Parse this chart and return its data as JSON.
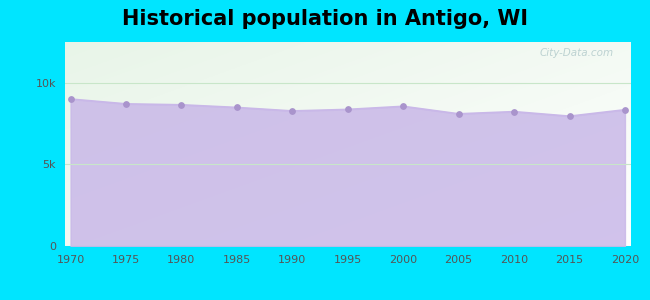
{
  "title": "Historical population in Antigo, WI",
  "title_fontsize": 15,
  "title_fontweight": "bold",
  "years": [
    1970,
    1975,
    1980,
    1985,
    1990,
    1995,
    2000,
    2005,
    2010,
    2015,
    2020
  ],
  "population": [
    9005,
    8710,
    8653,
    8490,
    8276,
    8370,
    8560,
    8100,
    8234,
    7956,
    8350
  ],
  "ylim": [
    0,
    12500
  ],
  "yticks": [
    0,
    5000,
    10000
  ],
  "ytick_labels": [
    "0",
    "5k",
    "10k"
  ],
  "xticks": [
    1970,
    1975,
    1980,
    1985,
    1990,
    1995,
    2000,
    2005,
    2010,
    2015,
    2020
  ],
  "line_color": "#c9b8e8",
  "fill_color": "#c9b8e8",
  "fill_alpha": 0.85,
  "dot_color": "#a994cc",
  "dot_size": 15,
  "bg_outer": "#00e5ff",
  "bg_plot_topleft": "#d4edda",
  "bg_plot_white": "#f0fff4",
  "grid_color": "#c8e6c9",
  "watermark": "City-Data.com"
}
